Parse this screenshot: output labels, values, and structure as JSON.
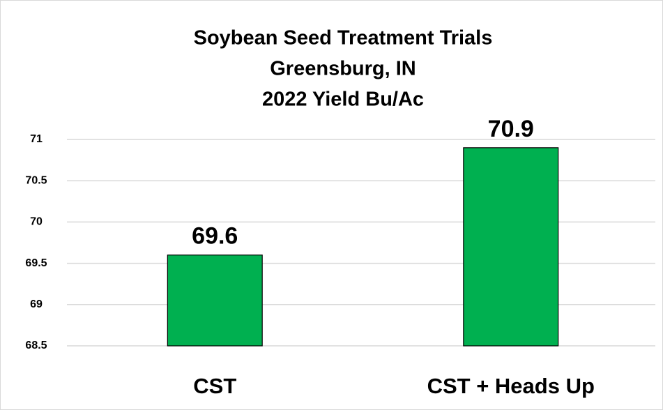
{
  "chart_data": {
    "type": "bar",
    "title": [
      "Soybean Seed Treatment Trials",
      "Greensburg, IN",
      "2022 Yield Bu/Ac"
    ],
    "categories": [
      "CST",
      "CST + Heads Up"
    ],
    "values": [
      69.6,
      70.9
    ],
    "color": "#00b050",
    "ylim": [
      68.5,
      71
    ],
    "yticks": [
      68.5,
      69,
      69.5,
      70,
      70.5,
      71
    ],
    "grid": true
  }
}
